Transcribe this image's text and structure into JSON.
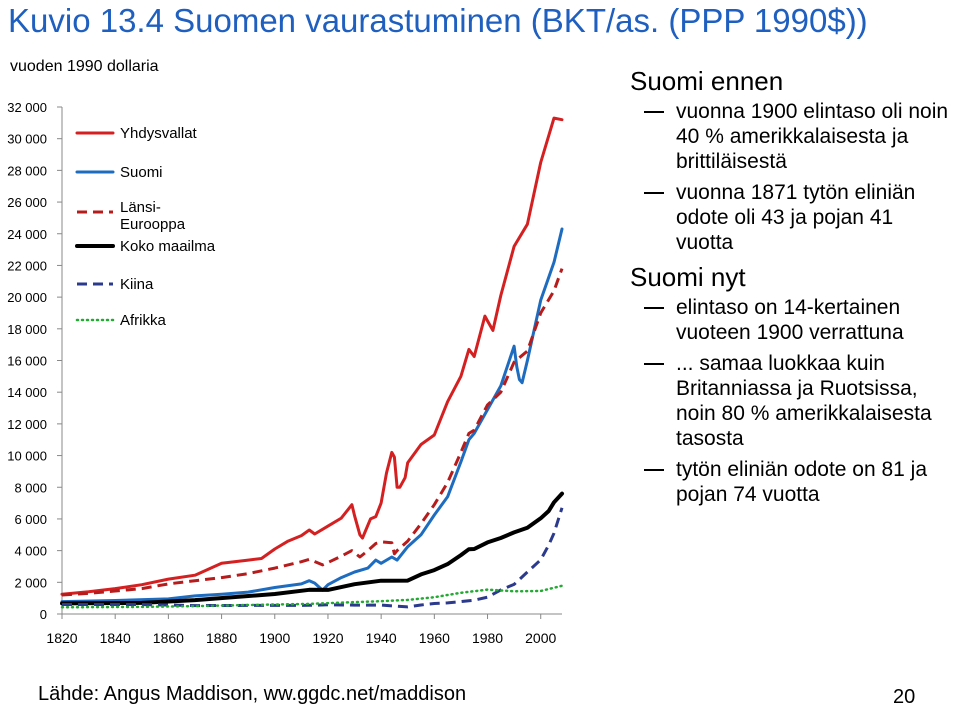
{
  "slide": {
    "title": "Kuvio 13.4 Suomen vaurastuminen (BKT/as. (PPP 1990$))",
    "source": "Lähde: Angus Maddison, ww.ggdc.net/maddison",
    "page_number": "20"
  },
  "right_panel": {
    "sections": [
      {
        "heading": "Suomi ennen",
        "bullets": [
          "vuonna 1900 elintaso oli noin 40 % amerikkalaisesta ja brittiläisestä",
          "vuonna 1871 tytön eliniän odote oli 43 ja pojan 41 vuotta"
        ]
      },
      {
        "heading": "Suomi nyt",
        "bullets": [
          "elintaso on 14-kertainen vuoteen 1900 verrattuna",
          "... samaa luokkaa kuin Britanniassa ja Ruotsissa, noin 80 % amerikkalaisesta tasosta",
          "tytön eliniän odote on 81 ja pojan 74 vuotta"
        ]
      }
    ]
  },
  "chart_data": {
    "type": "line",
    "title": "",
    "ylabel": "vuoden 1990 dollaria",
    "xlabel": "",
    "xlim": [
      1820,
      2008
    ],
    "ylim": [
      0,
      32000
    ],
    "xticks": [
      1820,
      1840,
      1860,
      1880,
      1900,
      1920,
      1940,
      1960,
      1980,
      2000
    ],
    "yticks": [
      0,
      2000,
      4000,
      6000,
      8000,
      10000,
      12000,
      14000,
      16000,
      18000,
      20000,
      22000,
      24000,
      26000,
      28000,
      30000,
      32000
    ],
    "ytick_labels": [
      "0",
      "2 000",
      "4 000",
      "6 000",
      "8 000",
      "10 000",
      "12 000",
      "14 000",
      "16 000",
      "18 000",
      "20 000",
      "22 000",
      "24 000",
      "26 000",
      "28 000",
      "30 000",
      "32 000"
    ],
    "legend_position": "top-left",
    "series": [
      {
        "name": "Yhdysvallat",
        "color": "#d42020",
        "style": "solid",
        "x": [
          1820,
          1830,
          1840,
          1850,
          1860,
          1870,
          1880,
          1890,
          1895,
          1900,
          1905,
          1910,
          1913,
          1915,
          1920,
          1925,
          1929,
          1930,
          1932,
          1933,
          1936,
          1938,
          1940,
          1942,
          1944,
          1945,
          1946,
          1947,
          1949,
          1950,
          1955,
          1960,
          1965,
          1970,
          1973,
          1975,
          1979,
          1980,
          1982,
          1985,
          1990,
          1995,
          2000,
          2005,
          2008
        ],
        "y": [
          1250,
          1400,
          1600,
          1850,
          2200,
          2450,
          3200,
          3400,
          3500,
          4100,
          4600,
          4950,
          5300,
          5050,
          5550,
          6050,
          6900,
          6200,
          5000,
          4800,
          6000,
          6150,
          7000,
          8900,
          10200,
          9900,
          8000,
          8000,
          8600,
          9550,
          10700,
          11300,
          13400,
          15000,
          16700,
          16250,
          18800,
          18500,
          17900,
          20100,
          23200,
          24600,
          28500,
          31300,
          31200
        ]
      },
      {
        "name": "Suomi",
        "color": "#1e6cbf",
        "style": "solid",
        "x": [
          1820,
          1840,
          1860,
          1870,
          1880,
          1890,
          1900,
          1910,
          1913,
          1915,
          1918,
          1920,
          1925,
          1930,
          1935,
          1938,
          1940,
          1944,
          1946,
          1950,
          1955,
          1960,
          1965,
          1970,
          1973,
          1975,
          1980,
          1985,
          1990,
          1991,
          1992,
          1993,
          1995,
          2000,
          2005,
          2008
        ],
        "y": [
          780,
          850,
          950,
          1140,
          1250,
          1380,
          1670,
          1900,
          2100,
          1950,
          1500,
          1850,
          2300,
          2650,
          2900,
          3400,
          3200,
          3600,
          3400,
          4250,
          5000,
          6250,
          7400,
          9600,
          11000,
          11400,
          12900,
          14400,
          16900,
          15600,
          14800,
          14600,
          16000,
          19800,
          22200,
          24300
        ]
      },
      {
        "name": "Länsi-Eurooppa",
        "color": "#b71c1c",
        "style": "dashed",
        "x": [
          1820,
          1830,
          1840,
          1850,
          1860,
          1870,
          1880,
          1890,
          1900,
          1910,
          1913,
          1918,
          1920,
          1925,
          1929,
          1932,
          1935,
          1938,
          1940,
          1944,
          1945,
          1946,
          1950,
          1955,
          1960,
          1965,
          1970,
          1973,
          1975,
          1980,
          1985,
          1990,
          1995,
          2000,
          2005,
          2008
        ],
        "y": [
          1200,
          1300,
          1450,
          1600,
          1900,
          2100,
          2300,
          2550,
          2900,
          3300,
          3450,
          3100,
          3250,
          3650,
          4000,
          3600,
          4000,
          4450,
          4550,
          4500,
          3800,
          4000,
          4600,
          5700,
          6900,
          8300,
          10200,
          11400,
          11600,
          13200,
          14000,
          15900,
          16600,
          19000,
          20400,
          21800
        ]
      },
      {
        "name": "Koko maailma",
        "color": "#000000",
        "style": "solid",
        "x": [
          1820,
          1850,
          1870,
          1900,
          1913,
          1920,
          1930,
          1940,
          1950,
          1955,
          1960,
          1965,
          1970,
          1973,
          1975,
          1980,
          1985,
          1990,
          1995,
          2000,
          2003,
          2005,
          2008
        ],
        "y": [
          670,
          700,
          880,
          1260,
          1530,
          1520,
          1880,
          2100,
          2110,
          2500,
          2770,
          3150,
          3720,
          4090,
          4100,
          4520,
          4800,
          5150,
          5450,
          6040,
          6500,
          7050,
          7600
        ]
      },
      {
        "name": "Kiina",
        "color": "#2b3a8c",
        "style": "dashed",
        "x": [
          1820,
          1850,
          1870,
          1890,
          1900,
          1913,
          1920,
          1930,
          1940,
          1950,
          1955,
          1960,
          1965,
          1970,
          1973,
          1975,
          1980,
          1985,
          1990,
          1995,
          2000,
          2003,
          2005,
          2008
        ],
        "y": [
          600,
          600,
          530,
          540,
          545,
          550,
          580,
          560,
          560,
          450,
          570,
          660,
          700,
          780,
          840,
          870,
          1060,
          1520,
          1870,
          2650,
          3420,
          4350,
          5100,
          6700
        ]
      },
      {
        "name": "Afrikka",
        "color": "#22aa33",
        "style": "dotted",
        "x": [
          1820,
          1850,
          1870,
          1900,
          1913,
          1930,
          1940,
          1950,
          1960,
          1970,
          1980,
          1990,
          2000,
          2008
        ],
        "y": [
          420,
          450,
          500,
          600,
          640,
          750,
          810,
          890,
          1060,
          1340,
          1540,
          1430,
          1450,
          1780
        ]
      }
    ]
  }
}
